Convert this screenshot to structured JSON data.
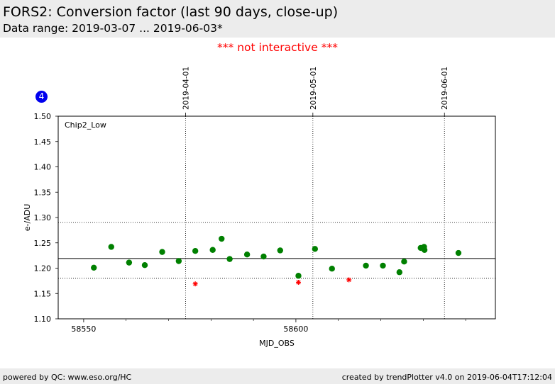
{
  "header": {
    "title": "FORS2: Conversion factor (last 90 days, close-up)",
    "subtitle": "Data range: 2019-03-07 ... 2019-06-03*"
  },
  "notice": "*** not interactive ***",
  "badge": "4",
  "footer": {
    "left": "powered by QC: www.eso.org/HC",
    "right": "created by trendPlotter v4.0 on 2019-06-04T17:12:04"
  },
  "colors": {
    "good_point": "#008000",
    "outlier_point": "#ff0000",
    "badge": "#0000ee",
    "notice": "#ff0000"
  },
  "chart_data": {
    "type": "scatter",
    "panel_label": "Chip2_Low",
    "xlabel": "MJD_OBS",
    "ylabel": "e-/ADU",
    "xlim": [
      58544,
      58647
    ],
    "ylim": [
      1.1,
      1.5
    ],
    "xticks": [
      58550,
      58600
    ],
    "yticks": [
      1.1,
      1.15,
      1.2,
      1.25,
      1.3,
      1.35,
      1.4,
      1.45,
      1.5
    ],
    "date_markers": [
      {
        "label": "2019-04-01",
        "x": 58574
      },
      {
        "label": "2019-05-01",
        "x": 58604
      },
      {
        "label": "2019-06-01",
        "x": 58635
      }
    ],
    "reference_line": 1.219,
    "threshold_lines": [
      1.29,
      1.18
    ],
    "series": [
      {
        "kind": "good",
        "x": [
          58552.4,
          58556.5,
          58560.7,
          58564.4,
          58568.5,
          58572.4,
          58576.3,
          58580.4,
          58582.5,
          58584.4,
          58588.5,
          58592.4,
          58596.3,
          58600.6,
          58604.5,
          58608.5,
          58616.5,
          58620.5,
          58624.4,
          58625.5,
          58629.4,
          58630.2,
          58630.3,
          58638.3
        ],
        "y": [
          1.201,
          1.242,
          1.211,
          1.206,
          1.232,
          1.214,
          1.234,
          1.236,
          1.258,
          1.218,
          1.227,
          1.223,
          1.235,
          1.185,
          1.238,
          1.199,
          1.205,
          1.205,
          1.192,
          1.213,
          1.24,
          1.242,
          1.236,
          1.23
        ]
      },
      {
        "kind": "outlier",
        "x": [
          58576.3,
          58600.6,
          58612.5
        ],
        "y": [
          1.169,
          1.172,
          1.177
        ]
      }
    ]
  }
}
